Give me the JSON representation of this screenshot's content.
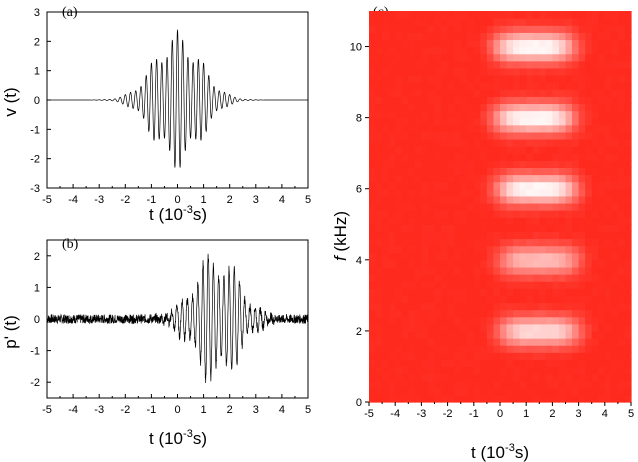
{
  "panels": {
    "a": {
      "label": "(a)",
      "ylabel": "v (t)",
      "xlabel_main": "t (10",
      "xlabel_exp": "-3",
      "xlabel_end": "s)",
      "xticks": [
        "-5",
        "-4",
        "-3",
        "-2",
        "-1",
        "0",
        "1",
        "2",
        "3",
        "4",
        "5"
      ],
      "yticks": [
        "-3",
        "-2",
        "-1",
        "0",
        "1",
        "2",
        "3"
      ]
    },
    "b": {
      "label": "(b)",
      "ylabel": "p' (t)",
      "xlabel_main": "t (10",
      "xlabel_exp": "-3",
      "xlabel_end": "s)",
      "xticks": [
        "-5",
        "-4",
        "-3",
        "-2",
        "-1",
        "0",
        "1",
        "2",
        "3",
        "4",
        "5"
      ],
      "yticks": [
        "-2",
        "-1",
        "0",
        "1",
        "2"
      ]
    },
    "c": {
      "label": "(c)",
      "ylabel_italic": "f",
      "ylabel_rest": " (kHz)",
      "xlabel_main": "t (10",
      "xlabel_exp": "-3",
      "xlabel_end": "s)",
      "xticks": [
        "-5",
        "-4",
        "-3",
        "-2",
        "-1",
        "0",
        "1",
        "2",
        "3",
        "4",
        "5"
      ],
      "yticks": [
        "0",
        "2",
        "4",
        "6",
        "8",
        "10"
      ]
    }
  },
  "chart_data": [
    {
      "type": "line",
      "panel": "a",
      "title": "",
      "xlabel": "t (10^-3 s)",
      "ylabel": "v (t)",
      "xlim": [
        -5,
        5
      ],
      "ylim": [
        -3,
        3
      ],
      "signal": "modulated burst",
      "envelope_center": 0,
      "peak_amplitude": 2.4,
      "oscillation_period": 0.2,
      "color": "#000000"
    },
    {
      "type": "line",
      "panel": "b",
      "title": "",
      "xlabel": "t (10^-3 s)",
      "ylabel": "p' (t)",
      "xlim": [
        -5,
        5
      ],
      "ylim": [
        -2.5,
        2.5
      ],
      "signal": "modulated burst with noise",
      "envelope_center": 1.5,
      "peak_amplitude": 2.2,
      "oscillation_period": 0.2,
      "noise_level": 0.08,
      "color": "#000000"
    },
    {
      "type": "heatmap",
      "panel": "c",
      "title": "",
      "xlabel": "t (10^-3 s)",
      "ylabel": "f (kHz)",
      "xlim": [
        -5,
        5
      ],
      "ylim": [
        0,
        11
      ],
      "colormap": [
        "#ff2a1e",
        "#ffffff"
      ],
      "bands": [
        {
          "f": 2,
          "t_center": 1.5,
          "intensity": 0.85
        },
        {
          "f": 4,
          "t_center": 1.5,
          "intensity": 0.7
        },
        {
          "f": 6,
          "t_center": 1.4,
          "intensity": 1.0
        },
        {
          "f": 8,
          "t_center": 1.3,
          "intensity": 1.0
        },
        {
          "f": 10,
          "t_center": 1.3,
          "intensity": 1.0
        }
      ]
    }
  ]
}
